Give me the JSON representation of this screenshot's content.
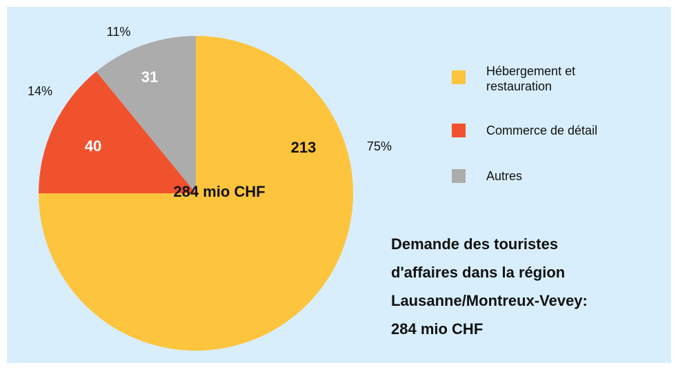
{
  "chart_data": {
    "type": "pie",
    "title": [
      "Demande des touristes",
      "d'affaires dans la région",
      "Lausanne/Montreux-Vevey:",
      "284 mio CHF"
    ],
    "center_label": "284 mio CHF",
    "categories": [
      "Hébergement et restauration",
      "Commerce de détail",
      "Autres"
    ],
    "values": [
      213,
      40,
      31
    ],
    "percent_labels": [
      "75%",
      "14%",
      "11%"
    ],
    "colors": [
      "#fdc43e",
      "#f0522e",
      "#acacac"
    ],
    "legend": "right"
  }
}
